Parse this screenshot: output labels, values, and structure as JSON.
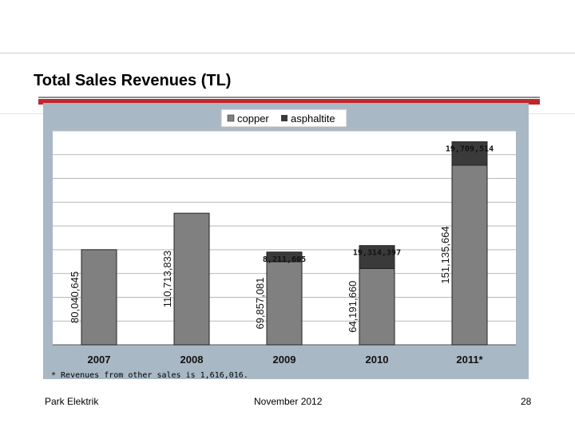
{
  "slide": {
    "title": "Total Sales Revenues (TL)",
    "footnote": "* Revenues from other sales is 1,616,016.",
    "footer_left": "Park Elektrik",
    "footer_center": "November 2012",
    "page_number": "28"
  },
  "chart_data": {
    "type": "bar",
    "stacked": true,
    "categories": [
      "2007",
      "2008",
      "2009",
      "2010",
      "2011*"
    ],
    "series": [
      {
        "name": "copper",
        "color": "#808080",
        "values": [
          80040645,
          110713833,
          69857081,
          64191660,
          151135664
        ],
        "labels": [
          "80,040,645",
          "110,713,833",
          "69,857,081",
          "64,191,660",
          "151,135,664"
        ]
      },
      {
        "name": "asphaltite",
        "color": "#3a3a3a",
        "values": [
          0,
          0,
          8211605,
          19314397,
          19709514
        ],
        "labels": [
          "",
          "",
          "8,211,605",
          "19,314,397",
          "19,709,514"
        ]
      }
    ],
    "legend_position": "top",
    "grid": true,
    "ylim": [
      0,
      180000000
    ],
    "colors": {
      "plot_area": "#ffffff",
      "panel": "#a9b8c5",
      "gridline": "#b9b9b9"
    }
  }
}
